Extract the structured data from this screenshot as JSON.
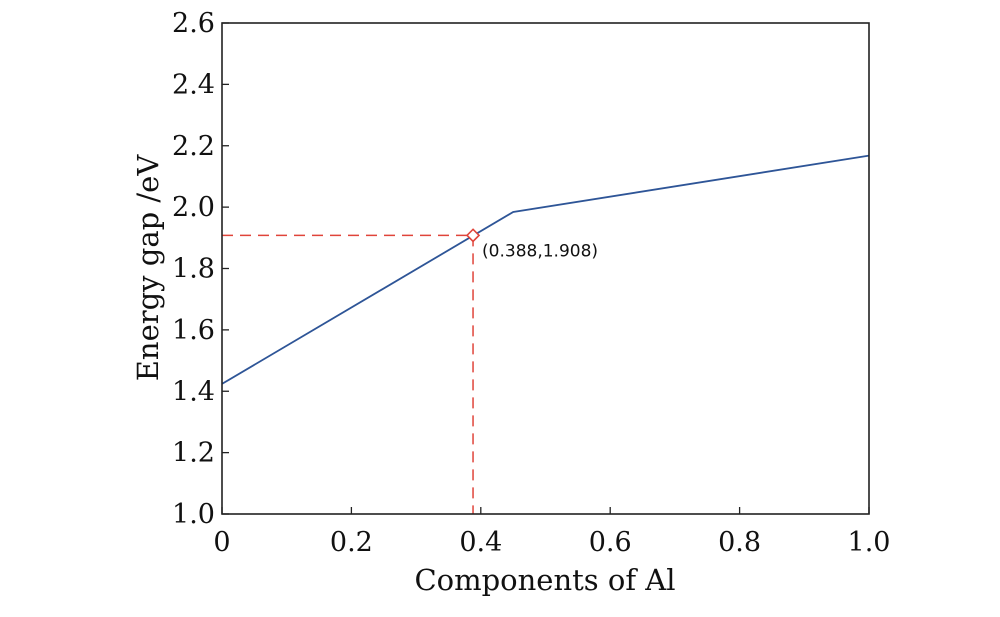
{
  "chart_data": {
    "type": "line",
    "xlabel": "Components of Al",
    "ylabel": "Energy gap /eV",
    "xlim": [
      0,
      1.0
    ],
    "ylim": [
      1.0,
      2.6
    ],
    "xticks": [
      "0",
      "0.2",
      "0.4",
      "0.6",
      "0.8",
      "1.0"
    ],
    "yticks": [
      "1.0",
      "1.2",
      "1.4",
      "1.6",
      "1.8",
      "2.0",
      "2.2",
      "2.4",
      "2.6"
    ],
    "grid": false,
    "series": [
      {
        "x": [
          0,
          0.45,
          1.0
        ],
        "y": [
          1.424,
          1.984,
          2.168
        ],
        "color": "#2e5597"
      }
    ],
    "annotation": {
      "x": 0.388,
      "y": 1.908,
      "text": "(0.388,1.908)",
      "marker": "diamond",
      "color": "#e0443a"
    }
  }
}
